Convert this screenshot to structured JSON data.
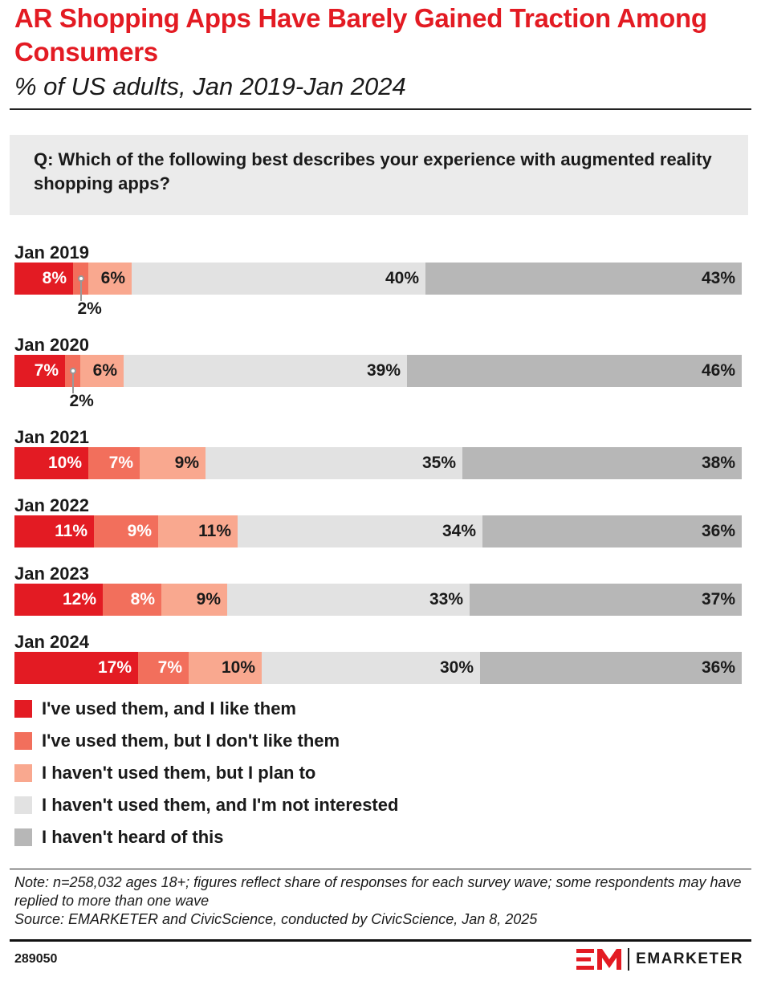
{
  "header": {
    "title": "AR Shopping Apps Have Barely Gained Traction Among Consumers",
    "subtitle": "% of US adults, Jan 2019-Jan 2024"
  },
  "question": "Q: Which of the following best describes your experience with augmented reality shopping apps?",
  "chart_data": {
    "type": "bar",
    "orientation": "horizontal-stacked",
    "title": "AR Shopping Apps Have Barely Gained Traction Among Consumers",
    "subtitle": "% of US adults, Jan 2019-Jan 2024",
    "xlabel": "",
    "ylabel": "",
    "categories": [
      "Jan 2019",
      "Jan 2020",
      "Jan 2021",
      "Jan 2022",
      "Jan 2023",
      "Jan 2024"
    ],
    "series": [
      {
        "name": "I've used them, and I like them",
        "color": "#e31b23",
        "values": [
          8,
          7,
          10,
          11,
          12,
          17
        ]
      },
      {
        "name": "I've used them, but I don't like them",
        "color": "#f26f5c",
        "values": [
          2,
          2,
          7,
          9,
          8,
          7
        ]
      },
      {
        "name": "I haven't used them, but I plan to",
        "color": "#f9a88f",
        "values": [
          6,
          6,
          9,
          11,
          9,
          10
        ]
      },
      {
        "name": "I haven't used them, and I'm not interested",
        "color": "#e2e2e2",
        "values": [
          40,
          39,
          35,
          34,
          33,
          30
        ]
      },
      {
        "name": "I haven't heard of this",
        "color": "#b7b7b7",
        "values": [
          43,
          46,
          38,
          36,
          37,
          36
        ]
      }
    ],
    "value_suffix": "%",
    "legend": "bottom"
  },
  "footer": {
    "note": "Note: n=258,032 ages 18+; figures reflect share of responses for each survey wave; some respondents may have replied to more than one wave",
    "source": "Source: EMARKETER and CivicScience, conducted by CivicScience, Jan 8, 2025",
    "chart_id": "289050",
    "brand_name": "EMARKETER"
  },
  "colors": {
    "accent": "#e31b23"
  }
}
